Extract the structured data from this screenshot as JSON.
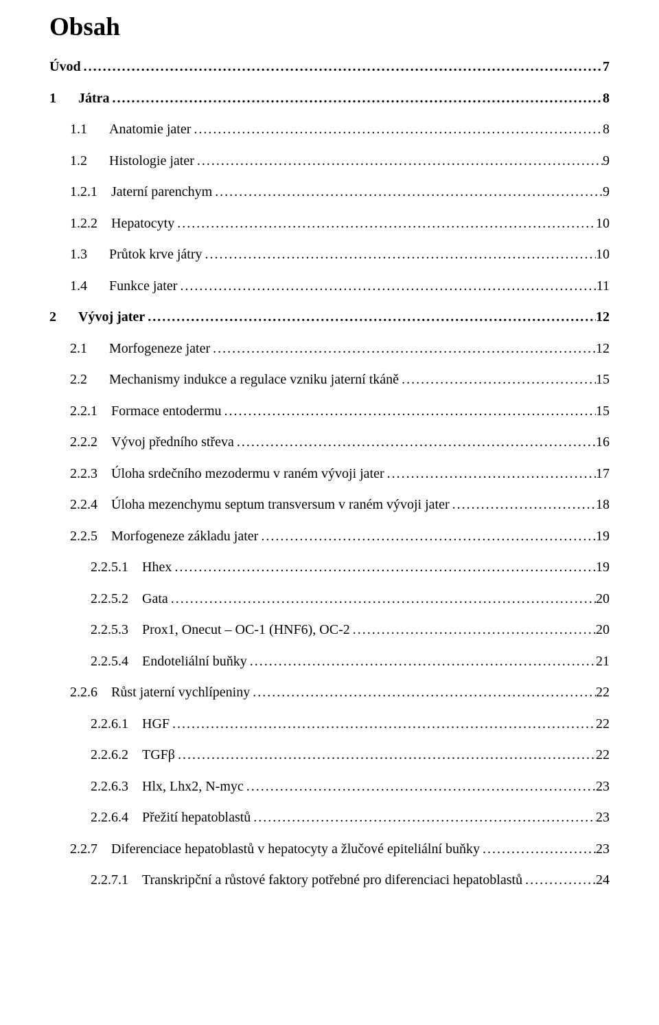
{
  "title": "Obsah",
  "entries": [
    {
      "level": "lvl1",
      "bold": true,
      "number": "",
      "label": "Úvod",
      "page": "7",
      "gap": ""
    },
    {
      "level": "lvl1b",
      "bold": true,
      "number": "1",
      "label": "Játra",
      "page": "8",
      "gap": "gap-num-label-xl"
    },
    {
      "level": "lvl2",
      "bold": false,
      "number": "1.1",
      "label": "Anatomie jater",
      "page": "8",
      "gap": "gap-num-label-l"
    },
    {
      "level": "lvl2",
      "bold": false,
      "number": "1.2",
      "label": "Histologie jater",
      "page": "9",
      "gap": "gap-num-label-l"
    },
    {
      "level": "lvl3",
      "bold": false,
      "number": "1.2.1",
      "label": "Jaterní parenchym",
      "page": "9",
      "gap": "gap-num-label-m"
    },
    {
      "level": "lvl3",
      "bold": false,
      "number": "1.2.2",
      "label": "Hepatocyty",
      "page": "10",
      "gap": "gap-num-label-m"
    },
    {
      "level": "lvl2",
      "bold": false,
      "number": "1.3",
      "label": "Průtok krve játry",
      "page": "10",
      "gap": "gap-num-label-l"
    },
    {
      "level": "lvl2",
      "bold": false,
      "number": "1.4",
      "label": "Funkce jater",
      "page": "11",
      "gap": "gap-num-label-l"
    },
    {
      "level": "lvl1b",
      "bold": true,
      "number": "2",
      "label": "Vývoj jater",
      "page": "12",
      "gap": "gap-num-label-xl"
    },
    {
      "level": "lvl2",
      "bold": false,
      "number": "2.1",
      "label": "Morfogeneze jater",
      "page": "12",
      "gap": "gap-num-label-l"
    },
    {
      "level": "lvl2",
      "bold": false,
      "number": "2.2",
      "label": "Mechanismy indukce a regulace vzniku jaterní tkáně",
      "page": "15",
      "gap": "gap-num-label-l"
    },
    {
      "level": "lvl3",
      "bold": false,
      "number": "2.2.1",
      "label": "Formace entodermu",
      "page": "15",
      "gap": "gap-num-label-m"
    },
    {
      "level": "lvl3",
      "bold": false,
      "number": "2.2.2",
      "label": "Vývoj předního střeva",
      "page": "16",
      "gap": "gap-num-label-m"
    },
    {
      "level": "lvl3",
      "bold": false,
      "number": "2.2.3",
      "label": "Úloha srdečního mezodermu v raném vývoji jater",
      "page": "17",
      "gap": "gap-num-label-m"
    },
    {
      "level": "lvl3",
      "bold": false,
      "number": "2.2.4",
      "label": "Úloha mezenchymu septum transversum v raném vývoji jater",
      "page": "18",
      "gap": "gap-num-label-m"
    },
    {
      "level": "lvl3",
      "bold": false,
      "number": "2.2.5",
      "label": "Morfogeneze základu jater",
      "page": "19",
      "gap": "gap-num-label-m"
    },
    {
      "level": "lvl4",
      "bold": false,
      "number": "2.2.5.1",
      "label": "Hhex",
      "page": "19",
      "gap": "gap-num-label-s"
    },
    {
      "level": "lvl4",
      "bold": false,
      "number": "2.2.5.2",
      "label": "Gata",
      "page": "20",
      "gap": "gap-num-label-s"
    },
    {
      "level": "lvl4",
      "bold": false,
      "number": "2.2.5.3",
      "label": "Prox1, Onecut – OC-1 (HNF6), OC-2",
      "page": "20",
      "gap": "gap-num-label-s"
    },
    {
      "level": "lvl4",
      "bold": false,
      "number": "2.2.5.4",
      "label": "Endoteliální buňky",
      "page": "21",
      "gap": "gap-num-label-s"
    },
    {
      "level": "lvl3",
      "bold": false,
      "number": "2.2.6",
      "label": "Růst jaterní vychlípeniny",
      "page": "22",
      "gap": "gap-num-label-m"
    },
    {
      "level": "lvl4",
      "bold": false,
      "number": "2.2.6.1",
      "label": "HGF",
      "page": "22",
      "gap": "gap-num-label-s"
    },
    {
      "level": "lvl4",
      "bold": false,
      "number": "2.2.6.2",
      "label": "TGFβ",
      "page": "22",
      "gap": "gap-num-label-s"
    },
    {
      "level": "lvl4",
      "bold": false,
      "number": "2.2.6.3",
      "label": "Hlx, Lhx2, N-myc",
      "page": "23",
      "gap": "gap-num-label-s"
    },
    {
      "level": "lvl4",
      "bold": false,
      "number": "2.2.6.4",
      "label": "Přežití hepatoblastů",
      "page": "23",
      "gap": "gap-num-label-s"
    },
    {
      "level": "lvl3",
      "bold": false,
      "number": "2.2.7",
      "label": "Diferenciace hepatoblastů v hepatocyty a žlučové epiteliální buňky",
      "page": "23",
      "gap": "gap-num-label-m"
    },
    {
      "level": "lvl4",
      "bold": false,
      "number": "2.2.7.1",
      "label": "Transkripční a růstové faktory potřebné pro diferenciaci hepatoblastů",
      "page": "24",
      "gap": "gap-num-label-s"
    }
  ]
}
